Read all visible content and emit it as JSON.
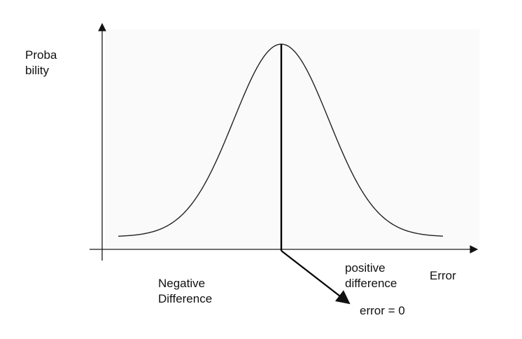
{
  "diagram": {
    "y_axis_label": [
      "Proba",
      "bility"
    ],
    "x_axis_label": "Error",
    "left_region_label": [
      "Negative",
      "Difference"
    ],
    "right_region_label": [
      "positive",
      "difference"
    ],
    "center_marker_label": "error = 0",
    "curve_type": "normal distribution (bell curve)",
    "colors": {
      "background": "#ffffff",
      "plot_background": "#fafafa",
      "lines": "#1a1a1a"
    }
  }
}
